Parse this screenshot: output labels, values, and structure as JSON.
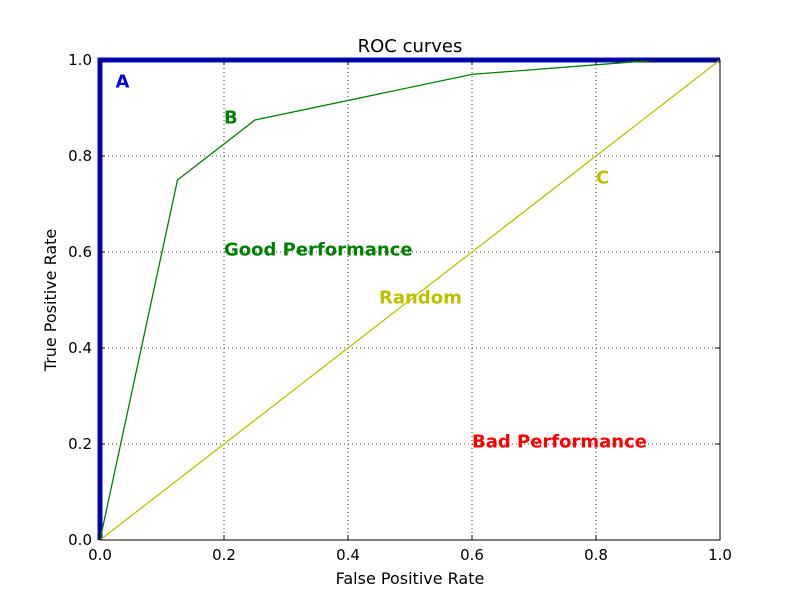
{
  "chart_data": {
    "type": "line",
    "title": "ROC curves",
    "xlabel": "False Positive Rate",
    "ylabel": "True Positive Rate",
    "xlim": [
      0.0,
      1.0
    ],
    "ylim": [
      0.0,
      1.0
    ],
    "grid": true,
    "x_ticks": [
      0.0,
      0.2,
      0.4,
      0.6,
      0.8,
      1.0
    ],
    "y_ticks": [
      0.0,
      0.2,
      0.4,
      0.6,
      0.8,
      1.0
    ],
    "x_tick_labels": [
      "0.0",
      "0.2",
      "0.4",
      "0.6",
      "0.8",
      "1.0"
    ],
    "y_tick_labels": [
      "0.0",
      "0.2",
      "0.4",
      "0.6",
      "0.8",
      "1.0"
    ],
    "series": [
      {
        "color": "#0000dd",
        "x": [
          0.0,
          0.0,
          1.0
        ],
        "y": [
          0.0,
          1.0,
          1.0
        ]
      },
      {
        "color": "#008000",
        "x": [
          0.0,
          0.125,
          0.25,
          0.6,
          0.9,
          1.0
        ],
        "y": [
          0.0,
          0.75,
          0.875,
          0.97,
          1.0,
          1.0
        ]
      },
      {
        "color": "#bfbf00",
        "x": [
          0.0,
          1.0
        ],
        "y": [
          0.0,
          1.0
        ]
      }
    ],
    "annotations": [
      {
        "text": "A",
        "x": 0.025,
        "y": 0.955,
        "color": "#0000dd"
      },
      {
        "text": "B",
        "x": 0.2,
        "y": 0.88,
        "color": "#008000"
      },
      {
        "text": "C",
        "x": 0.8,
        "y": 0.755,
        "color": "#bfbf00"
      },
      {
        "text": "Good Performance",
        "x": 0.2,
        "y": 0.605,
        "color": "#008000"
      },
      {
        "text": "Random",
        "x": 0.45,
        "y": 0.505,
        "color": "#bfbf00"
      },
      {
        "text": "Bad Performance",
        "x": 0.6,
        "y": 0.205,
        "color": "#ff0000"
      }
    ]
  }
}
